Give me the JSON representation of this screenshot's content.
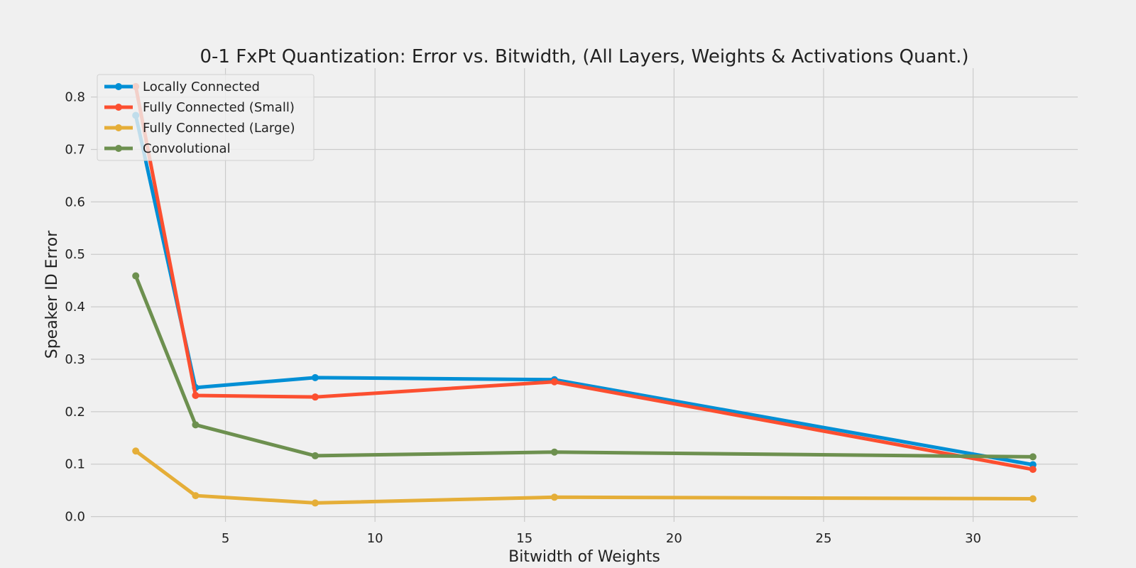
{
  "chart_data": {
    "type": "line",
    "title": "0-1 FxPt Quantization: Error vs. Bitwidth, (All Layers, Weights & Activations Quant.)",
    "xlabel": "Bitwidth of Weights",
    "ylabel": "Speaker ID Error",
    "xlim": [
      0.5,
      33.5
    ],
    "ylim": [
      -0.01,
      0.855
    ],
    "xticks": [
      5,
      10,
      15,
      20,
      25,
      30
    ],
    "xtick_labels": [
      "5",
      "10",
      "15",
      "20",
      "25",
      "30"
    ],
    "yticks": [
      0.0,
      0.1,
      0.2,
      0.3,
      0.4,
      0.5,
      0.6,
      0.7,
      0.8
    ],
    "ytick_labels": [
      "0.0",
      "0.1",
      "0.2",
      "0.3",
      "0.4",
      "0.5",
      "0.6",
      "0.7",
      "0.8"
    ],
    "grid": true,
    "legend_position": "top-left",
    "x": [
      2,
      4,
      8,
      16,
      32
    ],
    "series": [
      {
        "name": "Locally Connected",
        "color": "#008fd5",
        "values": [
          0.765,
          0.246,
          0.265,
          0.261,
          0.099
        ]
      },
      {
        "name": "Fully Connected (Small)",
        "color": "#fc4f30",
        "values": [
          0.82,
          0.231,
          0.228,
          0.257,
          0.09
        ]
      },
      {
        "name": "Fully Connected (Large)",
        "color": "#e5ae38",
        "values": [
          0.125,
          0.04,
          0.026,
          0.037,
          0.034
        ]
      },
      {
        "name": "Convolutional",
        "color": "#6d904f",
        "values": [
          0.459,
          0.175,
          0.116,
          0.123,
          0.114
        ]
      }
    ]
  }
}
